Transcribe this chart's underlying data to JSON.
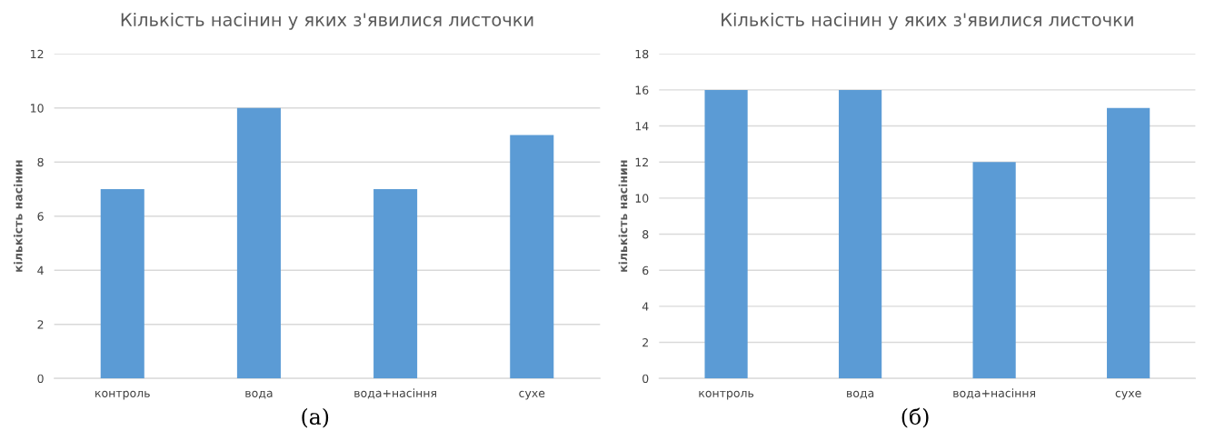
{
  "chart_data": [
    {
      "type": "bar",
      "title": "Кількість насінин у яких з'явилися листочки",
      "ylabel": "кількість насінин",
      "categories": [
        "контроль",
        "вода",
        "вода+насіння",
        "сухе"
      ],
      "values": [
        7,
        10,
        7,
        9
      ],
      "color": "#5b9bd5",
      "ylim": [
        0,
        12
      ],
      "yticks": [
        0,
        2,
        4,
        6,
        8,
        10,
        12
      ],
      "grid": "y",
      "annotations": [
        "(а)"
      ]
    },
    {
      "type": "bar",
      "title": "Кількість насінин у яких з'явилися листочки",
      "ylabel": "кількість насінин",
      "categories": [
        "контроль",
        "вода",
        "вода+насіння",
        "сухе"
      ],
      "values": [
        16,
        16,
        12,
        15
      ],
      "color": "#5b9bd5",
      "ylim": [
        0,
        18
      ],
      "yticks": [
        0,
        2,
        4,
        6,
        8,
        10,
        12,
        14,
        16,
        18
      ],
      "grid": "y",
      "annotations": [
        "(б)"
      ]
    }
  ]
}
